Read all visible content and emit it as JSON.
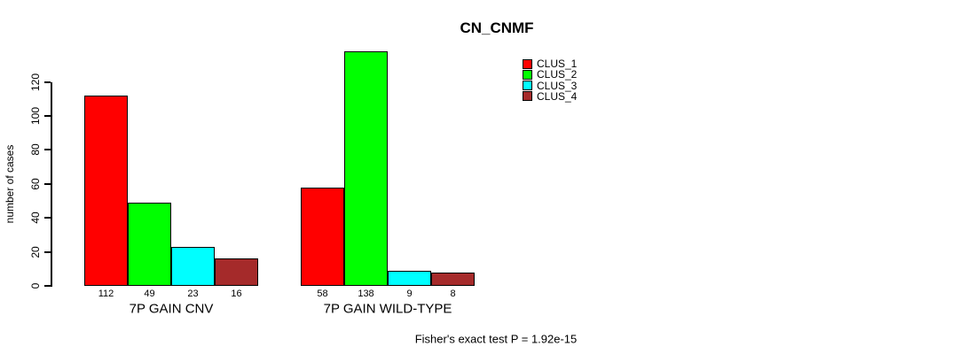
{
  "chart_data": {
    "type": "bar",
    "title": "CN_CNMF",
    "ylabel": "number of cases",
    "xlabel": "",
    "ylim": [
      0,
      120
    ],
    "yticks": [
      0,
      20,
      40,
      60,
      80,
      100,
      120
    ],
    "grid": false,
    "legend_position": "top-right",
    "categories": [
      "7P GAIN CNV",
      "7P GAIN WILD-TYPE"
    ],
    "series": [
      {
        "name": "CLUS_1",
        "color": "#FF0000",
        "values": [
          112,
          58
        ]
      },
      {
        "name": "CLUS_2",
        "color": "#00FF00",
        "values": [
          49,
          138
        ]
      },
      {
        "name": "CLUS_3",
        "color": "#00FFFF",
        "values": [
          23,
          9
        ]
      },
      {
        "name": "CLUS_4",
        "color": "#A52A2A",
        "values": [
          16,
          8
        ]
      }
    ],
    "bar_labels": [
      [
        "112",
        "49",
        "23",
        "16"
      ],
      [
        "58",
        "138",
        "9",
        "8"
      ]
    ],
    "annotation": "Fisher's exact test P = 1.92e-15"
  }
}
